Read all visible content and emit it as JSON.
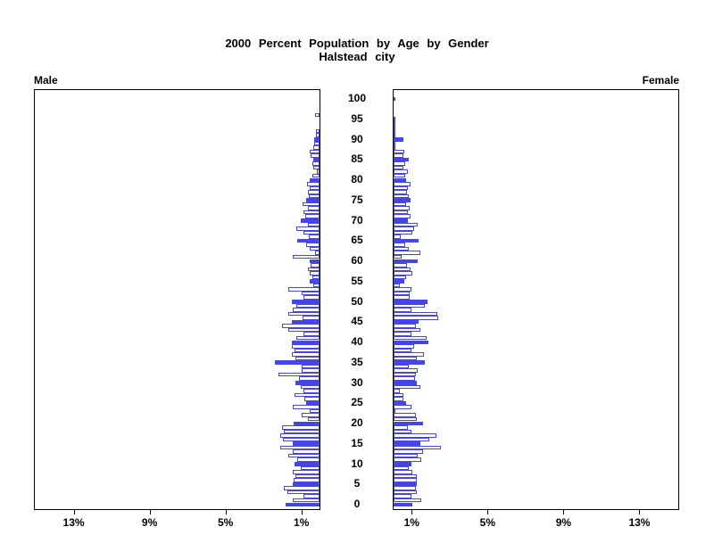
{
  "title": {
    "line1": "2000 Percent Population by Age by Gender",
    "line2": "Halstead city"
  },
  "left_header": "Male",
  "right_header": "Female",
  "chart_data": {
    "type": "bar",
    "subtype": "population-pyramid",
    "title": "2000 Percent Population by Age by Gender",
    "subtitle": "Halstead city",
    "age_axis": {
      "min": 0,
      "max": 100,
      "tick_step": 5,
      "tick_labels": [
        "0",
        "5",
        "10",
        "15",
        "20",
        "25",
        "30",
        "35",
        "40",
        "45",
        "50",
        "55",
        "60",
        "65",
        "70",
        "75",
        "80",
        "85",
        "90",
        "95",
        "100"
      ]
    },
    "pct_axis": {
      "max_percent": 15,
      "tick_values": [
        1,
        5,
        9,
        13
      ],
      "male_tick_labels": [
        "13%",
        "9%",
        "5%",
        "1%"
      ],
      "female_tick_labels": [
        "1%",
        "5%",
        "9%",
        "13%"
      ]
    },
    "fill_rule": "bars for ages divisible by 5 are filled blue; other ages are white with blue outline",
    "colors": {
      "bar_fill": "#4646e8",
      "bar_outline": "#4646e8",
      "bar_unfilled": "#ffffff",
      "axis": "#000000",
      "text": "#000000"
    },
    "legend_position": "none",
    "grid": false,
    "series": [
      {
        "name": "Male",
        "side": "left",
        "unit": "percent of total population",
        "values_by_age_0_to_100": [
          1.81,
          1.43,
          0.85,
          1.7,
          1.89,
          1.4,
          1.36,
          1.27,
          1.4,
          1.0,
          1.32,
          1.16,
          1.63,
          1.43,
          2.05,
          1.4,
          1.94,
          2.09,
          1.89,
          1.98,
          1.36,
          0.59,
          0.93,
          0.54,
          1.43,
          0.7,
          0.81,
          1.32,
          0.85,
          1.0,
          1.27,
          1.08,
          2.17,
          0.96,
          0.96,
          2.33,
          1.27,
          1.47,
          1.32,
          1.47,
          1.47,
          1.24,
          0.85,
          1.66,
          1.97,
          1.47,
          0.9,
          1.63,
          1.4,
          1.24,
          1.47,
          0.85,
          0.93,
          1.63,
          0.31,
          0.54,
          0.39,
          0.54,
          0.62,
          0.47,
          0.54,
          1.4,
          0.23,
          0.54,
          0.7,
          1.16,
          0.55,
          0.85,
          1.24,
          0.6,
          1.0,
          0.75,
          0.85,
          0.6,
          0.9,
          0.7,
          0.55,
          0.6,
          0.5,
          0.65,
          0.54,
          0.4,
          0.16,
          0.34,
          0.39,
          0.34,
          0.47,
          0.54,
          0.31,
          0.28,
          0.28,
          0.2,
          0.2,
          0,
          0,
          0,
          0.23,
          0,
          0,
          0,
          0
        ]
      },
      {
        "name": "Female",
        "side": "right",
        "unit": "percent of total population",
        "values_by_age_0_to_100": [
          0.98,
          1.47,
          0.93,
          1.24,
          1.16,
          1.24,
          1.24,
          1.2,
          1.0,
          0.82,
          0.93,
          1.44,
          1.29,
          1.55,
          2.48,
          1.4,
          1.86,
          2.25,
          0.93,
          0.73,
          1.55,
          1.24,
          1.16,
          0.1,
          0.93,
          0.67,
          0.51,
          0.51,
          0.31,
          1.4,
          1.24,
          1.13,
          1.16,
          1.29,
          0.78,
          1.66,
          1.24,
          1.6,
          0.93,
          1.08,
          1.83,
          1.75,
          0.93,
          1.4,
          1.16,
          1.32,
          2.37,
          2.3,
          0.93,
          1.63,
          1.78,
          0.85,
          0.85,
          0.93,
          0.31,
          0.57,
          0.67,
          0.98,
          0.88,
          0.7,
          1.29,
          0.42,
          1.4,
          0.82,
          0.62,
          1.32,
          0.36,
          0.98,
          1.08,
          1.29,
          0.73,
          0.9,
          0.75,
          0.85,
          0.65,
          0.88,
          0.8,
          0.7,
          0.75,
          0.88,
          0.67,
          0.6,
          0.73,
          0.5,
          0.62,
          0.82,
          0.5,
          0.55,
          0.1,
          0.08,
          0.5,
          0.05,
          0.05,
          0.05,
          0.05,
          0.05,
          0,
          0,
          0,
          0,
          0.1
        ]
      }
    ]
  }
}
